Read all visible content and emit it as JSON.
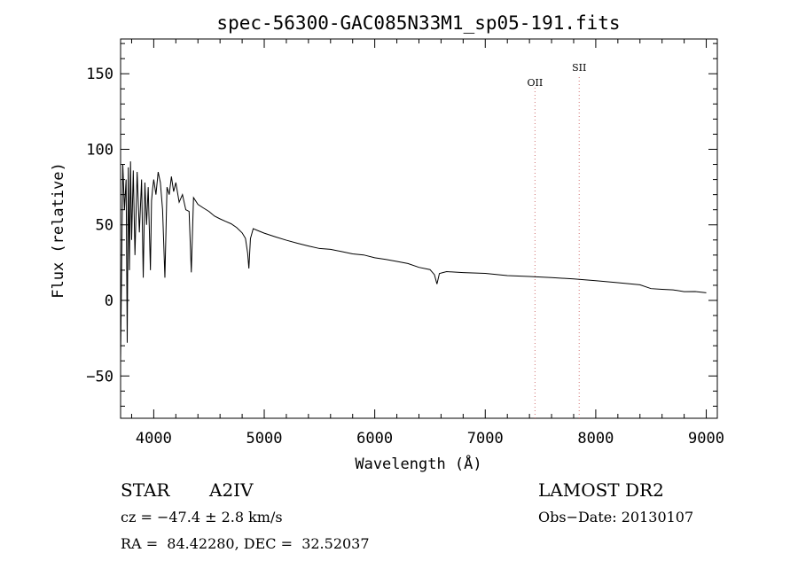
{
  "chart_data": {
    "type": "line",
    "title": "spec-56300-GAC085N33M1_sp05-191.fits",
    "xlabel": "Wavelength (Å)",
    "ylabel": "Flux (relative)",
    "xlim": [
      3700,
      9100
    ],
    "ylim": [
      -78,
      173
    ],
    "xticks": [
      4000,
      5000,
      6000,
      7000,
      8000,
      9000
    ],
    "yticks": [
      -50,
      0,
      50,
      100,
      150
    ],
    "grid": false,
    "series": [
      {
        "x": [
          3700,
          3720,
          3735,
          3750,
          3760,
          3770,
          3780,
          3790,
          3800,
          3815,
          3830,
          3850,
          3870,
          3890,
          3905,
          3920,
          3935,
          3950,
          3970,
          3980,
          3990,
          4000,
          4020,
          4040,
          4060,
          4080,
          4101,
          4120,
          4140,
          4160,
          4180,
          4200,
          4230,
          4260,
          4290,
          4320,
          4340,
          4360,
          4400,
          4450,
          4500,
          4550,
          4600,
          4650,
          4700,
          4750,
          4800,
          4830,
          4850,
          4861,
          4875,
          4900,
          4950,
          5000,
          5100,
          5200,
          5300,
          5400,
          5500,
          5600,
          5700,
          5800,
          5900,
          6000,
          6100,
          6200,
          6300,
          6400,
          6500,
          6540,
          6563,
          6585,
          6650,
          6800,
          7000,
          7200,
          7400,
          7600,
          7800,
          8000,
          8200,
          8400,
          8500,
          8600,
          8700,
          8800,
          8900,
          9000
        ],
        "y": [
          -40,
          90,
          60,
          80,
          -28,
          88,
          20,
          92,
          40,
          86,
          30,
          85,
          45,
          80,
          15,
          78,
          50,
          75,
          20,
          66,
          74,
          80,
          70,
          85,
          78,
          60,
          15,
          75,
          70,
          82,
          72,
          78,
          65,
          70,
          60,
          58,
          18,
          68,
          64,
          62,
          60,
          57,
          55,
          53,
          51,
          48,
          44,
          40,
          30,
          20,
          40,
          47,
          46,
          45,
          43,
          41,
          39,
          37,
          35,
          34,
          32,
          30,
          29,
          27,
          26,
          25,
          24,
          22,
          21,
          18,
          12,
          19,
          20,
          19,
          18,
          16,
          15,
          14,
          13,
          12,
          11,
          10,
          8,
          8,
          8,
          7,
          7,
          6
        ]
      }
    ],
    "annotations": [
      {
        "label": "OII",
        "x": 7450
      },
      {
        "label": "SII",
        "x": 7850
      }
    ]
  },
  "info": {
    "object_type": "STAR",
    "spectral_type": "A2IV",
    "survey": "LAMOST DR2",
    "cz": "cz = −47.4 ± 2.8 km/s",
    "obs_date": "Obs−Date: 20130107",
    "coords": "RA =  84.42280, DEC =  32.52037"
  },
  "colors": {
    "axis": "#000000",
    "spectrum": "#000000",
    "annotation_line": "#d07070",
    "background": "#ffffff"
  }
}
